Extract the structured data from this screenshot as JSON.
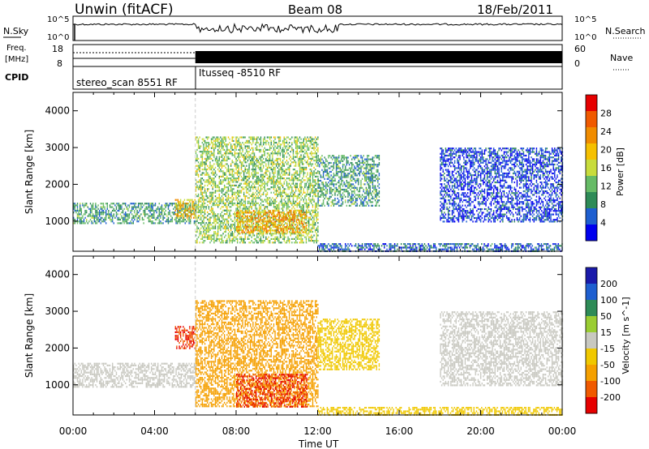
{
  "header": {
    "radar": "Unwin (fitACF)",
    "beam": "Beam 08",
    "date": "18/Feb/2011"
  },
  "top_panels": {
    "nsky_label": "N.Sky",
    "nsky_ticks": [
      "10^5",
      "10^0"
    ],
    "nsearch_label": "N.Search",
    "nsearch_ticks": [
      "10^5",
      "10^0"
    ],
    "freq_label": "Freq.",
    "freq_unit": "[MHz]",
    "freq_ticks": [
      "18",
      "8"
    ],
    "nave_label": "Nave",
    "nave_ticks": [
      "60",
      "0"
    ],
    "cpid_label": "CPID",
    "cpid_segments": [
      "stereo_scan 8551 RF",
      "Itusseq -8510 RF"
    ]
  },
  "colors": {
    "power_scale": [
      "#0000ee",
      "#1e5fd0",
      "#2e8b57",
      "#66bb66",
      "#c8dc3c",
      "#f5c000",
      "#f08c00",
      "#f05a00",
      "#e60000"
    ],
    "velocity_scale": [
      "#e60000",
      "#f05a00",
      "#f5a000",
      "#f0c800",
      "#c8c8c0",
      "#9acd32",
      "#2e8b57",
      "#1e5fd0",
      "#1a1aaa"
    ],
    "grey": "#c8c8c0"
  },
  "chart_data": [
    {
      "type": "heatmap",
      "panel": "power",
      "title": "",
      "xlabel": "Time UT",
      "ylabel": "Slant Range [km]",
      "xlim": [
        "00:00",
        "24:00"
      ],
      "ylim": [
        180,
        4500
      ],
      "x_ticks": [
        "00:00",
        "04:00",
        "08:00",
        "12:00",
        "16:00",
        "20:00",
        "00:00"
      ],
      "y_ticks": [
        1000,
        2000,
        3000,
        4000
      ],
      "colorbar_label": "Power [dB]",
      "colorbar_ticks": [
        4,
        8,
        12,
        16,
        20,
        24,
        28
      ],
      "regions": [
        {
          "t0": 0.0,
          "t1": 6.0,
          "r0": 950,
          "r1": 1500,
          "value": 12
        },
        {
          "t0": 5.0,
          "t1": 6.0,
          "r0": 1100,
          "r1": 1600,
          "value": 22
        },
        {
          "t0": 6.0,
          "t1": 12.0,
          "r0": 400,
          "r1": 3300,
          "value": 16
        },
        {
          "t0": 8.0,
          "t1": 11.5,
          "r0": 700,
          "r1": 1300,
          "value": 24
        },
        {
          "t0": 12.0,
          "t1": 15.0,
          "r0": 1400,
          "r1": 2800,
          "value": 12
        },
        {
          "t0": 12.0,
          "t1": 24.0,
          "r0": 200,
          "r1": 400,
          "value": 8
        },
        {
          "t0": 18.0,
          "t1": 24.0,
          "r0": 1000,
          "r1": 3000,
          "value": 6
        }
      ]
    },
    {
      "type": "heatmap",
      "panel": "velocity",
      "title": "",
      "xlabel": "Time UT",
      "ylabel": "Slant Range [km]",
      "xlim": [
        "00:00",
        "24:00"
      ],
      "ylim": [
        180,
        4500
      ],
      "x_ticks": [
        "00:00",
        "04:00",
        "08:00",
        "12:00",
        "16:00",
        "20:00",
        "00:00"
      ],
      "y_ticks": [
        1000,
        2000,
        3000,
        4000
      ],
      "colorbar_label": "Velocity [m s^-1]",
      "colorbar_ticks": [
        200,
        100,
        50,
        15,
        -15,
        -50,
        -100,
        -200
      ],
      "regions": [
        {
          "t0": 0.0,
          "t1": 6.0,
          "r0": 950,
          "r1": 1600,
          "value": 0
        },
        {
          "t0": 5.0,
          "t1": 6.0,
          "r0": 2000,
          "r1": 2600,
          "value": -200
        },
        {
          "t0": 6.0,
          "t1": 12.0,
          "r0": 400,
          "r1": 3300,
          "value": -80
        },
        {
          "t0": 8.0,
          "t1": 11.5,
          "r0": 400,
          "r1": 1300,
          "value": -200
        },
        {
          "t0": 12.0,
          "t1": 15.0,
          "r0": 1400,
          "r1": 2800,
          "value": -30
        },
        {
          "t0": 12.0,
          "t1": 24.0,
          "r0": 200,
          "r1": 400,
          "value": -40
        },
        {
          "t0": 18.0,
          "t1": 24.0,
          "r0": 1000,
          "r1": 3000,
          "value": 0
        }
      ]
    }
  ],
  "footer": {
    "xlabel": "Time UT",
    "x_ticks": [
      "00:00",
      "04:00",
      "08:00",
      "12:00",
      "16:00",
      "20:00",
      "00:00"
    ]
  }
}
